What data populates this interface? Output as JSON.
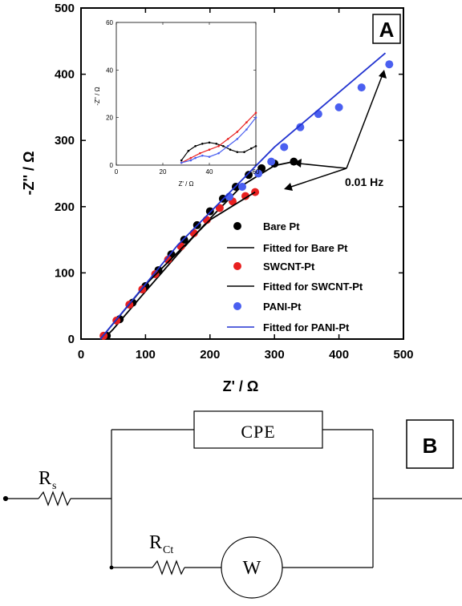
{
  "chart_data": [
    {
      "type": "scatter",
      "panel_label": "A",
      "xlabel": "Z' / Ω",
      "ylabel": "-Z'' / Ω",
      "xlim": [
        0,
        500
      ],
      "ylim": [
        0,
        500
      ],
      "xticks": [
        "0",
        "100",
        "200",
        "300",
        "400",
        "500"
      ],
      "yticks": [
        "0",
        "100",
        "200",
        "300",
        "400",
        "500"
      ],
      "legend_position": "bottom-right",
      "series": [
        {
          "name": "Bare Pt",
          "kind": "points",
          "color": "#000000",
          "x": [
            40,
            60,
            80,
            100,
            120,
            140,
            160,
            180,
            200,
            220,
            240,
            260,
            280,
            300,
            330
          ],
          "y": [
            5,
            30,
            55,
            80,
            104,
            128,
            150,
            172,
            193,
            212,
            230,
            248,
            258,
            265,
            268
          ]
        },
        {
          "name": "Fitted for Bare Pt",
          "kind": "line",
          "color": "#000000",
          "x": [
            35,
            50,
            100,
            150,
            200,
            250,
            300,
            330
          ],
          "y": [
            0,
            15,
            72,
            128,
            182,
            232,
            262,
            268
          ]
        },
        {
          "name": "SWCNT-Pt",
          "kind": "points",
          "color": "#e82020",
          "x": [
            35,
            55,
            75,
            95,
            115,
            135,
            155,
            175,
            195,
            215,
            235,
            255,
            270
          ],
          "y": [
            5,
            28,
            52,
            75,
            98,
            120,
            140,
            160,
            180,
            198,
            208,
            216,
            222
          ]
        },
        {
          "name": "Fitted for SWCNT-Pt",
          "kind": "line",
          "color": "#000000",
          "x": [
            30,
            100,
            200,
            270
          ],
          "y": [
            0,
            82,
            180,
            222
          ]
        },
        {
          "name": "PANI-Pt",
          "kind": "points",
          "color": "#4a5ff0",
          "x": [
            230,
            250,
            275,
            295,
            315,
            340,
            368,
            400,
            435,
            478
          ],
          "y": [
            215,
            230,
            250,
            268,
            290,
            320,
            340,
            350,
            380,
            415
          ]
        },
        {
          "name": "Fitted for PANI-Pt",
          "kind": "line",
          "color": "#2233d0",
          "x": [
            30,
            150,
            300,
            472
          ],
          "y": [
            0,
            142,
            290,
            432
          ]
        }
      ],
      "annotations": [
        {
          "text": "0.01 Hz"
        }
      ]
    },
    {
      "type": "line",
      "role": "inset",
      "xlim": [
        0,
        60
      ],
      "ylim": [
        0,
        60
      ],
      "xlabel": "Z' / Ω",
      "ylabel": "-Z'' / Ω",
      "xticks": [
        "0",
        "20",
        "40",
        "60"
      ],
      "yticks": [
        "0",
        "20",
        "40",
        "60"
      ],
      "series": [
        {
          "name": "Bare Pt",
          "color": "#000000",
          "x": [
            28,
            31,
            34,
            37,
            40,
            43,
            46,
            49,
            52,
            55,
            58,
            60
          ],
          "y": [
            2,
            6,
            8,
            9,
            9.5,
            9,
            8,
            6.5,
            5.5,
            5.5,
            7,
            8
          ]
        },
        {
          "name": "SWCNT-Pt",
          "color": "#e82020",
          "x": [
            28,
            32,
            36,
            40,
            44,
            48,
            52,
            56,
            60
          ],
          "y": [
            1,
            3,
            5,
            6.5,
            8,
            11,
            14,
            18,
            22
          ]
        },
        {
          "name": "PANI-Pt",
          "color": "#4a5ff0",
          "x": [
            28,
            32,
            34,
            37,
            40,
            44,
            48,
            52,
            56,
            60
          ],
          "y": [
            1,
            2,
            3,
            4,
            3.5,
            5,
            8,
            11,
            15,
            20
          ]
        }
      ]
    }
  ],
  "circuit": {
    "panel_label": "B",
    "labels": {
      "rs_main": "R",
      "rs_sub": "s",
      "rct_main": "R",
      "rct_sub": "Ct",
      "cpe": "CPE",
      "w": "W"
    }
  }
}
